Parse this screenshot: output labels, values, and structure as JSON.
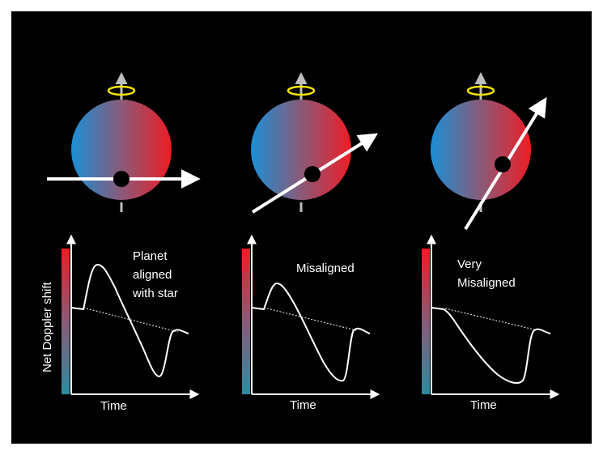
{
  "panels": [
    {
      "id": "aligned",
      "annotation": [
        "Planet",
        "aligned",
        "with star"
      ]
    },
    {
      "id": "misaligned",
      "annotation": [
        "Misaligned"
      ]
    },
    {
      "id": "very-misaligned",
      "annotation": [
        "Very",
        "Misaligned"
      ]
    }
  ],
  "y_axis_label": "Net Doppler shift",
  "x_axis_label": "Time",
  "colors": {
    "background": "#000000",
    "blueshift": "#1b8fd6",
    "redshift": "#ee1c24",
    "spin_ring": "#f5e400",
    "spin_arrow": "#bdbdbd",
    "curve": "#ffffff"
  }
}
